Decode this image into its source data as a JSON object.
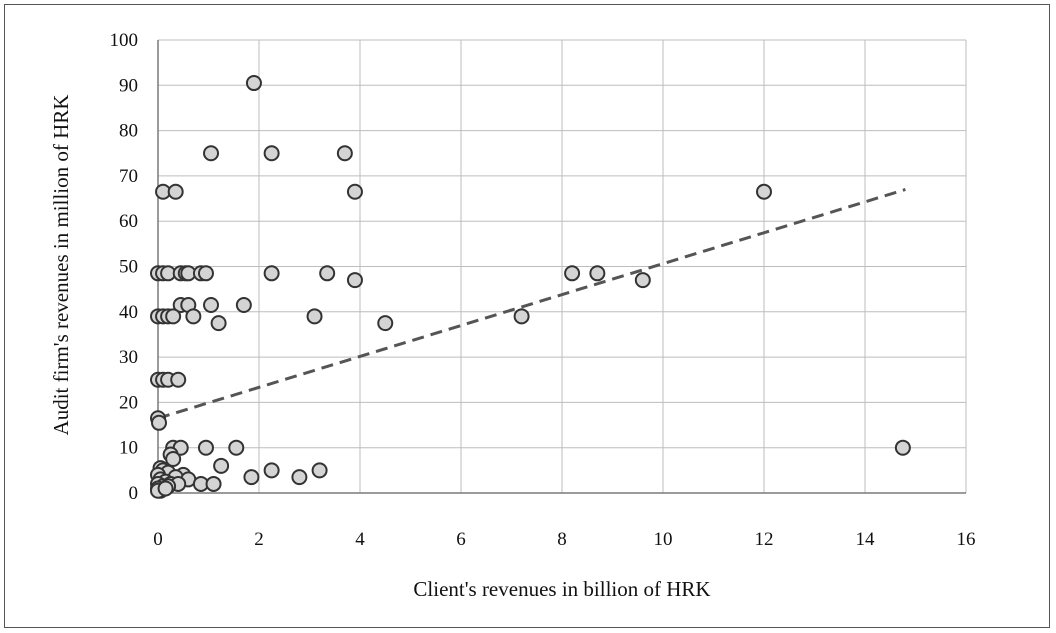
{
  "chart_data": {
    "type": "scatter",
    "xlabel": "Client's revenues in billion of HRK",
    "ylabel": "Audit firm's revenues in million of HRK",
    "xlim": [
      0,
      16
    ],
    "ylim": [
      0,
      100
    ],
    "xticks": [
      0,
      2,
      4,
      6,
      8,
      10,
      12,
      14,
      16
    ],
    "yticks": [
      0,
      10,
      20,
      30,
      40,
      50,
      60,
      70,
      80,
      90,
      100
    ],
    "grid": true,
    "marker_fill": "#d4d4d4",
    "marker_edge": "#333333",
    "trendline": {
      "x": [
        0,
        14.8
      ],
      "y": [
        16.5,
        67
      ],
      "style": "dashed",
      "color": "#555555"
    },
    "points": [
      [
        1.9,
        90.5
      ],
      [
        1.05,
        75
      ],
      [
        2.25,
        75
      ],
      [
        3.7,
        75
      ],
      [
        0.1,
        66.5
      ],
      [
        0.35,
        66.5
      ],
      [
        3.9,
        66.5
      ],
      [
        12.0,
        66.5
      ],
      [
        0.0,
        48.5
      ],
      [
        0.1,
        48.5
      ],
      [
        0.2,
        48.5
      ],
      [
        0.45,
        48.5
      ],
      [
        0.55,
        48.5
      ],
      [
        0.6,
        48.5
      ],
      [
        0.85,
        48.5
      ],
      [
        0.95,
        48.5
      ],
      [
        2.25,
        48.5
      ],
      [
        3.35,
        48.5
      ],
      [
        8.2,
        48.5
      ],
      [
        8.7,
        48.5
      ],
      [
        3.9,
        47
      ],
      [
        9.6,
        47
      ],
      [
        0.45,
        41.5
      ],
      [
        0.6,
        41.5
      ],
      [
        1.05,
        41.5
      ],
      [
        1.7,
        41.5
      ],
      [
        0.0,
        39
      ],
      [
        0.1,
        39
      ],
      [
        0.2,
        39
      ],
      [
        0.3,
        39
      ],
      [
        0.7,
        39
      ],
      [
        3.1,
        39
      ],
      [
        7.2,
        39
      ],
      [
        1.2,
        37.5
      ],
      [
        4.5,
        37.5
      ],
      [
        0.0,
        25
      ],
      [
        0.1,
        25
      ],
      [
        0.2,
        25
      ],
      [
        0.4,
        25
      ],
      [
        0.0,
        16.5
      ],
      [
        0.02,
        15.5
      ],
      [
        0.3,
        10
      ],
      [
        0.45,
        10
      ],
      [
        0.95,
        10
      ],
      [
        1.55,
        10
      ],
      [
        14.75,
        10
      ],
      [
        0.25,
        8.5
      ],
      [
        0.3,
        7.5
      ],
      [
        1.25,
        6
      ],
      [
        0.05,
        5.5
      ],
      [
        0.1,
        5
      ],
      [
        2.25,
        5
      ],
      [
        3.2,
        5
      ],
      [
        0.2,
        4.5
      ],
      [
        0.0,
        4
      ],
      [
        0.5,
        4
      ],
      [
        0.35,
        3.5
      ],
      [
        1.85,
        3.5
      ],
      [
        2.8,
        3.5
      ],
      [
        0.6,
        3
      ],
      [
        0.05,
        3
      ],
      [
        0.15,
        2.5
      ],
      [
        0.25,
        2
      ],
      [
        0.4,
        2
      ],
      [
        0.85,
        2
      ],
      [
        1.1,
        2
      ],
      [
        0.0,
        2
      ],
      [
        0.1,
        1.5
      ],
      [
        0.2,
        1.5
      ],
      [
        0.0,
        1
      ],
      [
        0.05,
        0.5
      ],
      [
        0.0,
        0.5
      ],
      [
        0.15,
        1
      ]
    ]
  }
}
